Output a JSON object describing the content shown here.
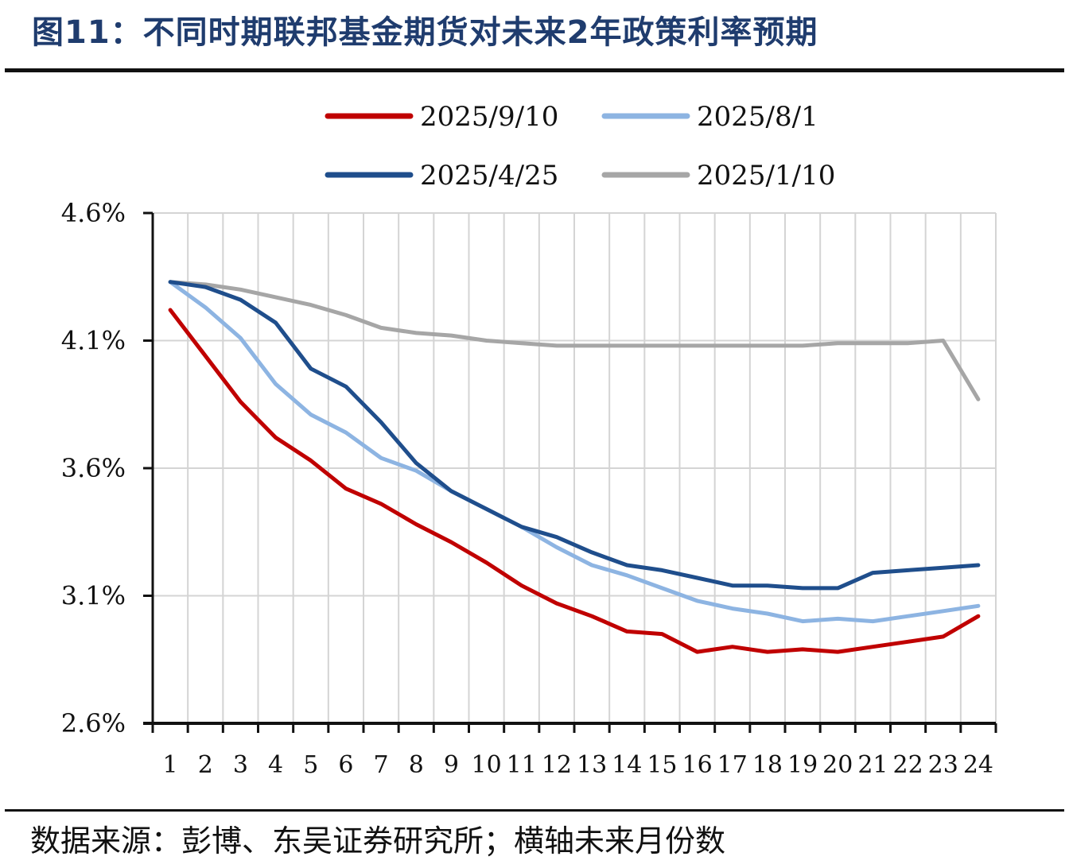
{
  "title": "图11：不同时期联邦基金期货对未来2年政策利率预期",
  "source": "数据来源：彭博、东吴证券研究所；横轴未来月份数",
  "chart_data": {
    "type": "line",
    "title": "",
    "xlabel": "",
    "ylabel": "",
    "x": [
      1,
      2,
      3,
      4,
      5,
      6,
      7,
      8,
      9,
      10,
      11,
      12,
      13,
      14,
      15,
      16,
      17,
      18,
      19,
      20,
      21,
      22,
      23,
      24
    ],
    "ylim": [
      2.6,
      4.6
    ],
    "yticks": [
      "4.6%",
      "4.1%",
      "3.6%",
      "3.1%",
      "2.6%"
    ],
    "ytick_values": [
      4.6,
      4.1,
      3.6,
      3.1,
      2.6
    ],
    "grid": true,
    "legend_position": "top",
    "series": [
      {
        "name": "2025/9/10",
        "color": "#c00000",
        "values": [
          4.22,
          4.04,
          3.86,
          3.72,
          3.63,
          3.52,
          3.46,
          3.38,
          3.31,
          3.23,
          3.14,
          3.07,
          3.02,
          2.96,
          2.95,
          2.88,
          2.9,
          2.88,
          2.89,
          2.88,
          2.9,
          2.92,
          2.94,
          3.02
        ]
      },
      {
        "name": "2025/8/1",
        "color": "#8db4e2",
        "values": [
          4.33,
          4.23,
          4.11,
          3.93,
          3.81,
          3.74,
          3.64,
          3.59,
          3.51,
          3.44,
          3.37,
          3.29,
          3.22,
          3.18,
          3.13,
          3.08,
          3.05,
          3.03,
          3.0,
          3.01,
          3.0,
          3.02,
          3.04,
          3.06
        ]
      },
      {
        "name": "2025/4/25",
        "color": "#1f4e8c",
        "values": [
          4.33,
          4.31,
          4.26,
          4.17,
          3.99,
          3.92,
          3.78,
          3.62,
          3.51,
          3.44,
          3.37,
          3.33,
          3.27,
          3.22,
          3.2,
          3.17,
          3.14,
          3.14,
          3.13,
          3.13,
          3.19,
          3.2,
          3.21,
          3.22
        ]
      },
      {
        "name": "2025/1/10",
        "color": "#a6a6a6",
        "values": [
          4.33,
          4.32,
          4.3,
          4.27,
          4.24,
          4.2,
          4.15,
          4.13,
          4.12,
          4.1,
          4.09,
          4.08,
          4.08,
          4.08,
          4.08,
          4.08,
          4.08,
          4.08,
          4.08,
          4.09,
          4.09,
          4.09,
          4.1,
          3.87
        ]
      }
    ]
  }
}
